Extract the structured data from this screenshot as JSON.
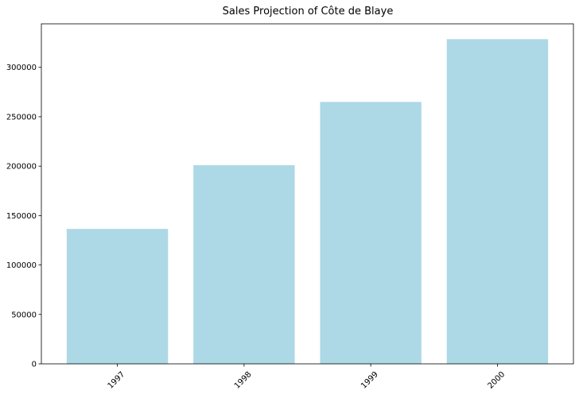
{
  "chart_data": {
    "type": "bar",
    "title": "Sales Projection of Côte de Blaye",
    "xlabel": "",
    "ylabel": "",
    "categories": [
      "1997",
      "1998",
      "1999",
      "2000"
    ],
    "values": [
      136500,
      201000,
      265000,
      328500
    ],
    "ylim": [
      0,
      344000
    ],
    "yticks": [
      0,
      50000,
      100000,
      150000,
      200000,
      250000,
      300000
    ],
    "grid": false,
    "bar_color": "#add8e6",
    "x_tick_rotation": -45
  }
}
